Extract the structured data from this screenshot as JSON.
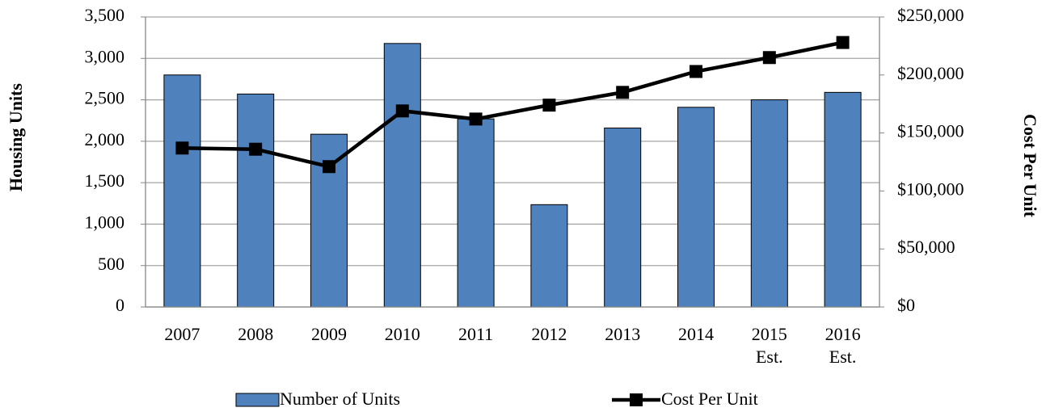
{
  "chart_data": {
    "type": "bar_line",
    "categories": [
      "2007",
      "2008",
      "2009",
      "2010",
      "2011",
      "2012",
      "2013",
      "2014",
      "2015 Est.",
      "2016 Est."
    ],
    "series": [
      {
        "name": "Number of Units",
        "type": "bar",
        "color": "#4f81bd",
        "values": [
          2800,
          2570,
          2085,
          3180,
          2270,
          1235,
          2160,
          2410,
          2500,
          2590
        ]
      },
      {
        "name": "Cost Per Unit",
        "type": "line",
        "axis": "y2",
        "color": "#000000",
        "values": [
          137000,
          136000,
          121000,
          169000,
          162000,
          174000,
          185000,
          203000,
          215000,
          228000
        ]
      }
    ],
    "ylabel": "Housing Units",
    "y2label": "Cost Per Unit",
    "ylim": [
      0,
      3500
    ],
    "yticks": [
      0,
      500,
      {
        "value": 1000,
        "label": "1,000"
      },
      {
        "value": 1500,
        "label": "1,500"
      },
      {
        "value": 2000,
        "label": "2,000"
      },
      {
        "value": 2500,
        "label": "2,500"
      },
      {
        "value": 3000,
        "label": "3,000"
      },
      {
        "value": 3500,
        "label": "3,500"
      }
    ],
    "y2lim": [
      0,
      250000
    ],
    "y2ticks": [
      {
        "value": 0,
        "label": "$0"
      },
      {
        "value": 50000,
        "label": "$50,000"
      },
      {
        "value": 100000,
        "label": "$100,000"
      },
      {
        "value": 150000,
        "label": "$150,000"
      },
      {
        "value": 200000,
        "label": "$200,000"
      },
      {
        "value": 250000,
        "label": "$250,000"
      }
    ],
    "grid": true,
    "legend": "bottom"
  }
}
